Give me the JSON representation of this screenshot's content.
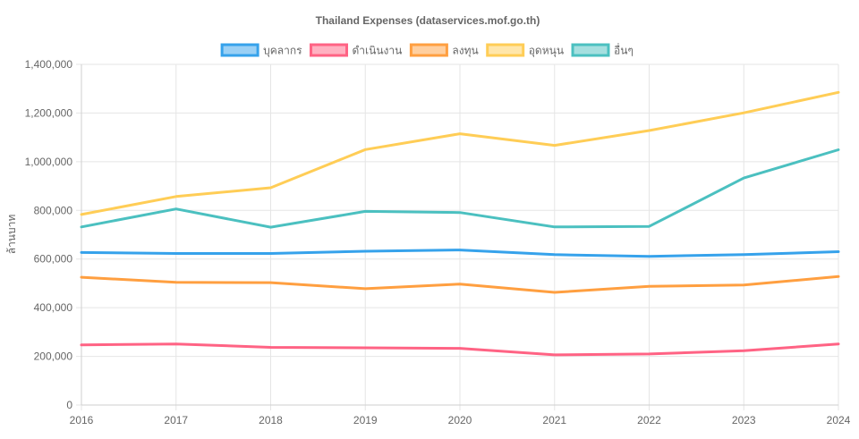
{
  "chart_data": {
    "type": "line",
    "title": "Thailand Expenses (dataservices.mof.go.th)",
    "xlabel": "",
    "ylabel": "ล้านบาท",
    "x": [
      "2016",
      "2017",
      "2018",
      "2019",
      "2020",
      "2021",
      "2022",
      "2023",
      "2024"
    ],
    "ylim": [
      0,
      1400000
    ],
    "y_ticks": [
      0,
      200000,
      400000,
      600000,
      800000,
      1000000,
      1200000,
      1400000
    ],
    "y_tick_labels": [
      "0",
      "200,000",
      "400,000",
      "600,000",
      "800,000",
      "1,000,000",
      "1,200,000",
      "1,400,000"
    ],
    "grid": true,
    "legend_position": "top",
    "series": [
      {
        "name": "บุคลากร",
        "color": "#36a2eb",
        "fill": "#9ad0f5",
        "values": [
          627000,
          623000,
          623000,
          632000,
          637000,
          618000,
          611000,
          618000,
          630000
        ]
      },
      {
        "name": "ดำเนินงาน",
        "color": "#ff6384",
        "fill": "#ffb1c1",
        "values": [
          247000,
          251000,
          237000,
          235000,
          233000,
          206000,
          210000,
          223000,
          251000
        ]
      },
      {
        "name": "ลงทุน",
        "color": "#ff9f40",
        "fill": "#ffcf9f",
        "values": [
          525000,
          504000,
          503000,
          478000,
          497000,
          463000,
          488000,
          493000,
          528000
        ]
      },
      {
        "name": "อุดหนุน",
        "color": "#ffcd56",
        "fill": "#ffe6aa",
        "values": [
          783000,
          857000,
          893000,
          1050000,
          1115000,
          1067000,
          1128000,
          1201000,
          1285000
        ]
      },
      {
        "name": "อื่นๆ",
        "color": "#4bc0c0",
        "fill": "#a5dfdf",
        "values": [
          732000,
          806000,
          731000,
          796000,
          791000,
          732000,
          734000,
          933000,
          1049000
        ]
      }
    ]
  }
}
